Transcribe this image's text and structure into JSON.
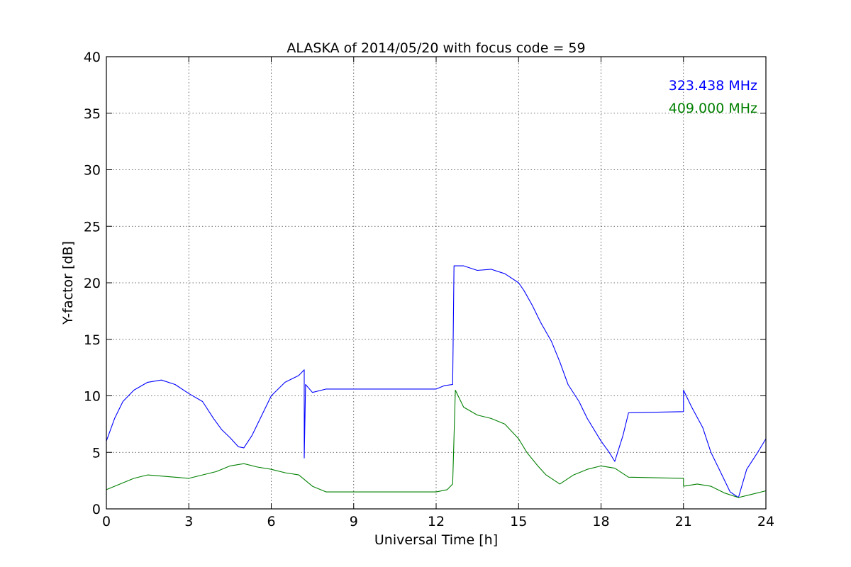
{
  "chart_data": {
    "type": "line",
    "title": "ALASKA of 2014/05/20 with focus code = 59",
    "xlabel": "Universal Time [h]",
    "ylabel": "Y-factor [dB]",
    "xlim": [
      0,
      24
    ],
    "ylim": [
      0,
      40
    ],
    "xticks": [
      "0",
      "3",
      "6",
      "9",
      "12",
      "15",
      "18",
      "21",
      "24"
    ],
    "yticks": [
      "0",
      "5",
      "10",
      "15",
      "20",
      "25",
      "30",
      "35",
      "40"
    ],
    "grid": true,
    "legend_position": "top-right",
    "series": [
      {
        "name": "323.438 MHz",
        "color": "#0000ff",
        "points": [
          [
            0.0,
            6.0
          ],
          [
            0.3,
            8.0
          ],
          [
            0.6,
            9.5
          ],
          [
            1.0,
            10.5
          ],
          [
            1.5,
            11.2
          ],
          [
            2.0,
            11.4
          ],
          [
            2.5,
            11.0
          ],
          [
            3.0,
            10.2
          ],
          [
            3.5,
            9.5
          ],
          [
            3.9,
            8.0
          ],
          [
            4.2,
            7.0
          ],
          [
            4.5,
            6.3
          ],
          [
            4.8,
            5.5
          ],
          [
            5.0,
            5.4
          ],
          [
            5.3,
            6.5
          ],
          [
            5.7,
            8.5
          ],
          [
            6.0,
            10.0
          ],
          [
            6.5,
            11.2
          ],
          [
            7.0,
            11.8
          ],
          [
            7.2,
            12.3
          ],
          [
            7.2,
            4.5
          ],
          [
            7.25,
            11.0
          ],
          [
            7.5,
            10.3
          ],
          [
            8.0,
            10.6
          ],
          [
            12.0,
            10.6
          ],
          [
            12.3,
            10.9
          ],
          [
            12.6,
            11.0
          ],
          [
            12.65,
            21.5
          ],
          [
            13.0,
            21.5
          ],
          [
            13.5,
            21.1
          ],
          [
            14.0,
            21.2
          ],
          [
            14.5,
            20.8
          ],
          [
            15.0,
            20.0
          ],
          [
            15.2,
            19.3
          ],
          [
            15.5,
            18.0
          ],
          [
            15.8,
            16.5
          ],
          [
            16.2,
            14.8
          ],
          [
            16.5,
            13.0
          ],
          [
            16.8,
            11.0
          ],
          [
            17.2,
            9.5
          ],
          [
            17.5,
            8.0
          ],
          [
            18.0,
            6.0
          ],
          [
            18.3,
            5.0
          ],
          [
            18.5,
            4.2
          ],
          [
            18.8,
            6.5
          ],
          [
            19.0,
            8.5
          ],
          [
            21.0,
            8.6
          ],
          [
            21.0,
            10.5
          ],
          [
            21.3,
            9.0
          ],
          [
            21.7,
            7.2
          ],
          [
            22.0,
            5.0
          ],
          [
            22.4,
            3.0
          ],
          [
            22.7,
            1.5
          ],
          [
            23.0,
            1.0
          ],
          [
            23.3,
            3.5
          ],
          [
            23.7,
            5.0
          ],
          [
            24.0,
            6.2
          ]
        ]
      },
      {
        "name": "409.000 MHz",
        "color": "#008000",
        "points": [
          [
            0.0,
            1.7
          ],
          [
            0.5,
            2.2
          ],
          [
            1.0,
            2.7
          ],
          [
            1.5,
            3.0
          ],
          [
            2.0,
            2.9
          ],
          [
            2.5,
            2.8
          ],
          [
            3.0,
            2.7
          ],
          [
            3.5,
            3.0
          ],
          [
            4.0,
            3.3
          ],
          [
            4.5,
            3.8
          ],
          [
            5.0,
            4.0
          ],
          [
            5.5,
            3.7
          ],
          [
            6.0,
            3.5
          ],
          [
            6.5,
            3.2
          ],
          [
            7.0,
            3.0
          ],
          [
            7.5,
            2.0
          ],
          [
            8.0,
            1.5
          ],
          [
            12.0,
            1.5
          ],
          [
            12.4,
            1.7
          ],
          [
            12.6,
            2.2
          ],
          [
            12.7,
            10.5
          ],
          [
            13.0,
            9.0
          ],
          [
            13.5,
            8.3
          ],
          [
            14.0,
            8.0
          ],
          [
            14.5,
            7.5
          ],
          [
            15.0,
            6.2
          ],
          [
            15.3,
            5.0
          ],
          [
            15.7,
            3.8
          ],
          [
            16.0,
            3.0
          ],
          [
            16.5,
            2.2
          ],
          [
            17.0,
            3.0
          ],
          [
            17.5,
            3.5
          ],
          [
            18.0,
            3.8
          ],
          [
            18.5,
            3.6
          ],
          [
            19.0,
            2.8
          ],
          [
            21.0,
            2.7
          ],
          [
            21.0,
            2.0
          ],
          [
            21.5,
            2.2
          ],
          [
            22.0,
            2.0
          ],
          [
            22.5,
            1.4
          ],
          [
            23.0,
            1.0
          ],
          [
            23.5,
            1.3
          ],
          [
            24.0,
            1.6
          ]
        ]
      }
    ]
  }
}
